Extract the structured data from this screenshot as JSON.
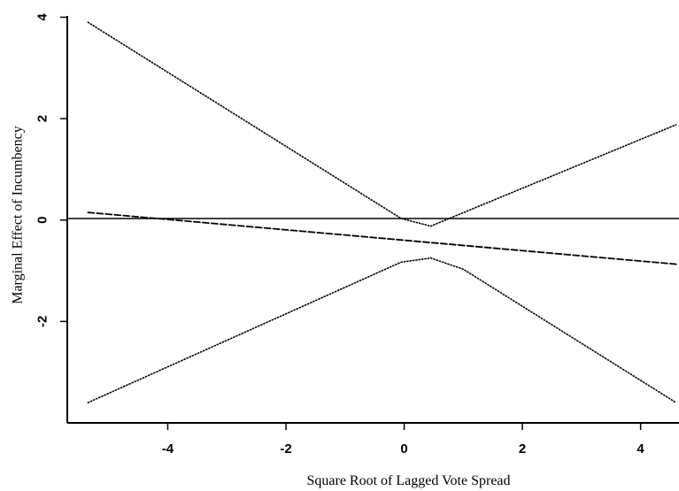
{
  "chart_data": {
    "type": "line",
    "title": "",
    "xlabel": "Square Root of Lagged Vote Spread",
    "ylabel": "Marginal Effect of Incumbency",
    "xlim": [
      -5.7,
      4.65
    ],
    "ylim": [
      -4.0,
      4.2
    ],
    "x_ticks": [
      -4,
      -2,
      0,
      2,
      4
    ],
    "x_tick_labels": [
      "-4",
      "-2",
      "0",
      "2",
      "4"
    ],
    "y_ticks": [
      -2,
      0,
      2,
      4
    ],
    "y_tick_labels": [
      "-2",
      "0",
      "2",
      "4"
    ],
    "grid": false,
    "legend": "none",
    "series": [
      {
        "style": "dashed",
        "x": [
          -5.35,
          4.6
        ],
        "y": [
          0.15,
          -0.87
        ]
      },
      {
        "style": "dotted",
        "x": [
          -5.35,
          -0.05,
          0.45,
          4.6
        ],
        "y": [
          3.9,
          0.03,
          -0.12,
          1.88
        ]
      },
      {
        "style": "dotted",
        "x": [
          -5.35,
          -0.05,
          0.45,
          1.0,
          4.6
        ],
        "y": [
          -3.6,
          -0.83,
          -0.75,
          -0.97,
          -3.6
        ]
      }
    ],
    "reference_lines": [
      {
        "axis": "y",
        "value": 0.03,
        "style": "solid"
      }
    ]
  }
}
